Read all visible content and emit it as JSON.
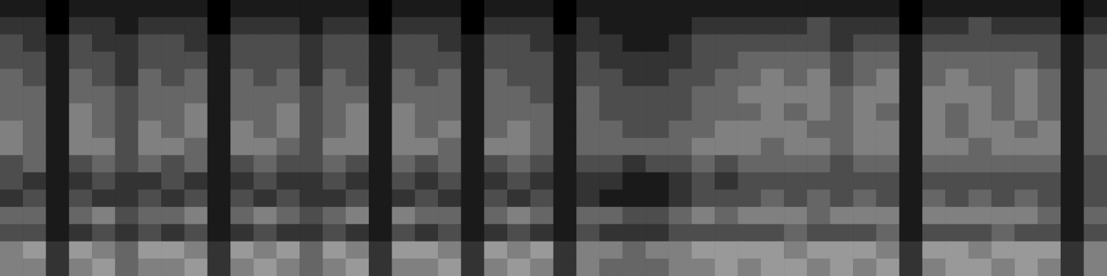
{
  "chart_data": {
    "type": "heatmap",
    "tick_labels": false,
    "grid": false,
    "color_range": [
      0,
      10
    ],
    "cells": [
      [
        1,
        1,
        0,
        1,
        1,
        1,
        1,
        1,
        1,
        0,
        1,
        1,
        1,
        1,
        1,
        1,
        0,
        1,
        1,
        1,
        0,
        1,
        1,
        1,
        0,
        1,
        1,
        1,
        1,
        1,
        1,
        1,
        1,
        1,
        1,
        1,
        1,
        1,
        1,
        0,
        1,
        1,
        1,
        1,
        1,
        1,
        0,
        1
      ],
      [
        2,
        2,
        0,
        2,
        2,
        1,
        2,
        2,
        2,
        0,
        2,
        2,
        2,
        1,
        2,
        2,
        0,
        2,
        2,
        2,
        0,
        2,
        2,
        2,
        0,
        2,
        1,
        1,
        1,
        1,
        2,
        2,
        2,
        2,
        2,
        3,
        2,
        2,
        2,
        0,
        2,
        2,
        3,
        2,
        2,
        2,
        0,
        2
      ],
      [
        3,
        2,
        1,
        3,
        2,
        2,
        3,
        3,
        2,
        1,
        3,
        3,
        3,
        2,
        3,
        3,
        1,
        3,
        3,
        2,
        1,
        3,
        3,
        2,
        1,
        2,
        2,
        1,
        1,
        2,
        3,
        3,
        3,
        3,
        3,
        3,
        2,
        3,
        3,
        1,
        3,
        3,
        3,
        3,
        3,
        3,
        1,
        3
      ],
      [
        3,
        3,
        1,
        3,
        3,
        2,
        3,
        3,
        3,
        1,
        3,
        3,
        3,
        2,
        3,
        3,
        1,
        3,
        3,
        3,
        1,
        3,
        3,
        3,
        1,
        3,
        2,
        2,
        2,
        2,
        3,
        3,
        4,
        4,
        4,
        4,
        3,
        4,
        4,
        1,
        4,
        4,
        4,
        4,
        4,
        3,
        1,
        3
      ],
      [
        4,
        3,
        1,
        4,
        3,
        2,
        4,
        3,
        4,
        1,
        4,
        3,
        4,
        2,
        4,
        3,
        1,
        4,
        3,
        4,
        1,
        4,
        3,
        3,
        1,
        3,
        3,
        2,
        2,
        3,
        3,
        4,
        4,
        5,
        4,
        5,
        3,
        4,
        5,
        1,
        4,
        5,
        4,
        4,
        5,
        4,
        1,
        4
      ],
      [
        4,
        4,
        1,
        4,
        4,
        3,
        4,
        4,
        4,
        1,
        4,
        4,
        4,
        3,
        4,
        4,
        1,
        4,
        4,
        4,
        1,
        4,
        4,
        3,
        1,
        4,
        3,
        3,
        3,
        3,
        4,
        4,
        5,
        5,
        5,
        5,
        4,
        5,
        5,
        1,
        5,
        5,
        5,
        4,
        5,
        4,
        1,
        4
      ],
      [
        4,
        4,
        1,
        5,
        4,
        3,
        4,
        4,
        5,
        1,
        4,
        4,
        5,
        3,
        4,
        5,
        1,
        5,
        4,
        4,
        1,
        4,
        4,
        4,
        1,
        4,
        3,
        3,
        3,
        3,
        4,
        4,
        4,
        5,
        4,
        5,
        4,
        5,
        4,
        1,
        5,
        4,
        5,
        4,
        5,
        4,
        1,
        4
      ],
      [
        5,
        4,
        1,
        5,
        4,
        3,
        5,
        4,
        5,
        1,
        5,
        4,
        5,
        3,
        4,
        5,
        1,
        5,
        4,
        5,
        1,
        4,
        5,
        4,
        1,
        4,
        4,
        3,
        3,
        4,
        4,
        5,
        5,
        5,
        5,
        4,
        4,
        5,
        5,
        1,
        5,
        4,
        5,
        5,
        4,
        5,
        1,
        4
      ],
      [
        5,
        4,
        1,
        5,
        5,
        3,
        5,
        5,
        4,
        1,
        5,
        5,
        4,
        3,
        5,
        5,
        1,
        5,
        5,
        4,
        1,
        5,
        5,
        4,
        1,
        4,
        4,
        4,
        4,
        4,
        5,
        5,
        5,
        4,
        5,
        5,
        4,
        5,
        5,
        1,
        5,
        5,
        4,
        5,
        5,
        5,
        1,
        4
      ],
      [
        3,
        4,
        1,
        3,
        4,
        3,
        4,
        3,
        4,
        1,
        3,
        4,
        3,
        3,
        4,
        3,
        1,
        4,
        3,
        4,
        1,
        3,
        4,
        3,
        1,
        3,
        3,
        2,
        3,
        3,
        4,
        3,
        4,
        4,
        4,
        4,
        3,
        4,
        4,
        1,
        4,
        4,
        4,
        4,
        4,
        4,
        1,
        3
      ],
      [
        3,
        2,
        1,
        2,
        3,
        2,
        2,
        3,
        2,
        1,
        2,
        3,
        2,
        2,
        3,
        2,
        1,
        3,
        2,
        3,
        1,
        2,
        3,
        2,
        1,
        2,
        2,
        1,
        1,
        2,
        3,
        2,
        3,
        3,
        3,
        3,
        3,
        3,
        3,
        1,
        3,
        3,
        3,
        3,
        3,
        3,
        1,
        3
      ],
      [
        2,
        3,
        1,
        3,
        2,
        2,
        3,
        2,
        3,
        1,
        3,
        2,
        3,
        2,
        2,
        3,
        1,
        2,
        3,
        2,
        1,
        3,
        2,
        3,
        1,
        2,
        1,
        1,
        1,
        2,
        3,
        3,
        3,
        4,
        3,
        4,
        3,
        4,
        3,
        1,
        4,
        3,
        4,
        3,
        4,
        3,
        1,
        3
      ],
      [
        4,
        4,
        1,
        4,
        5,
        3,
        4,
        4,
        5,
        1,
        4,
        5,
        4,
        3,
        4,
        5,
        1,
        5,
        4,
        4,
        1,
        4,
        5,
        4,
        1,
        4,
        4,
        3,
        3,
        4,
        5,
        4,
        5,
        5,
        5,
        4,
        5,
        5,
        5,
        1,
        5,
        5,
        5,
        5,
        5,
        4,
        1,
        4
      ],
      [
        3,
        3,
        1,
        2,
        3,
        2,
        3,
        2,
        3,
        1,
        2,
        3,
        2,
        2,
        3,
        2,
        1,
        3,
        2,
        3,
        1,
        2,
        3,
        2,
        1,
        3,
        2,
        2,
        2,
        3,
        3,
        3,
        3,
        3,
        4,
        3,
        3,
        3,
        4,
        1,
        3,
        3,
        3,
        4,
        3,
        3,
        1,
        3
      ],
      [
        5,
        6,
        2,
        6,
        5,
        4,
        6,
        6,
        5,
        2,
        6,
        5,
        6,
        4,
        6,
        5,
        2,
        6,
        6,
        5,
        2,
        6,
        5,
        6,
        2,
        5,
        5,
        4,
        5,
        5,
        6,
        6,
        6,
        6,
        5,
        6,
        6,
        6,
        5,
        2,
        6,
        6,
        5,
        6,
        6,
        6,
        2,
        5
      ],
      [
        5,
        5,
        2,
        5,
        6,
        4,
        5,
        5,
        6,
        2,
        5,
        6,
        5,
        4,
        5,
        6,
        2,
        5,
        5,
        6,
        2,
        5,
        6,
        5,
        2,
        5,
        4,
        4,
        4,
        5,
        5,
        6,
        5,
        6,
        6,
        5,
        6,
        5,
        6,
        2,
        5,
        6,
        6,
        5,
        6,
        5,
        2,
        5
      ]
    ]
  }
}
